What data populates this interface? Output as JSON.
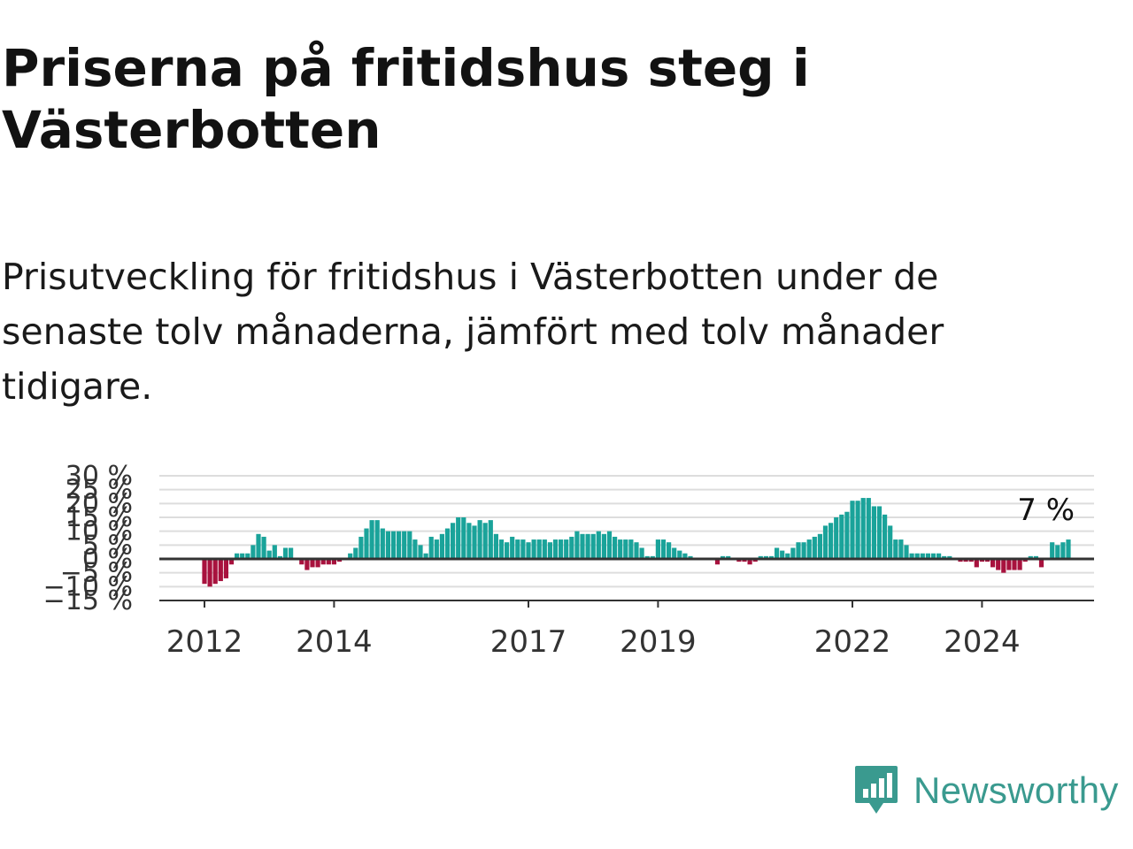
{
  "title": "Priserna på fritidshus steg i Västerbotten",
  "subtitle": "Prisutveckling för fritidshus i Västerbotten under de senaste tolv månaderna, jämfört med tolv månader tidigare.",
  "logo": {
    "text": "Newsworthy",
    "icon": "bar-chart-speech-bubble-icon"
  },
  "colors": {
    "positive": "#1aa39a",
    "negative": "#a8123e",
    "grid": "#dddddd",
    "axis": "#333333",
    "logo": "#3a9a8f"
  },
  "chart_data": {
    "type": "bar",
    "x_start": "2012-01",
    "x_end": "2025-01",
    "ylim": [
      -15,
      30
    ],
    "yticks": [
      30,
      25,
      20,
      15,
      10,
      5,
      0,
      -5,
      -10,
      -15
    ],
    "ytick_labels": [
      "30 %",
      "25 %",
      "20 %",
      "15 %",
      "10 %",
      "5 %",
      "0 %",
      "−5 %",
      "−10 %",
      "−15 %"
    ],
    "xtick_labels": [
      "2012",
      "2014",
      "2017",
      "2019",
      "2022",
      "2024"
    ],
    "xtick_years": [
      2012,
      2014,
      2017,
      2019,
      2022,
      2024
    ],
    "grid": true,
    "last_label": "7 %",
    "values": [
      -9,
      -10,
      -9,
      -8,
      -7,
      -2,
      2,
      2,
      2,
      5,
      9,
      8,
      3,
      5,
      1,
      4,
      4,
      0,
      -2,
      -4,
      -3,
      -3,
      -2,
      -2,
      -2,
      -1,
      0,
      2,
      4,
      8,
      11,
      14,
      14,
      11,
      10,
      10,
      10,
      10,
      10,
      7,
      5,
      2,
      8,
      7,
      9,
      11,
      13,
      15,
      15,
      13,
      12,
      14,
      13,
      14,
      9,
      7,
      6,
      8,
      7,
      7,
      6,
      7,
      7,
      7,
      6,
      7,
      7,
      7,
      8,
      10,
      9,
      9,
      9,
      10,
      9,
      10,
      8,
      7,
      7,
      7,
      6,
      4,
      1,
      1,
      7,
      7,
      6,
      4,
      3,
      2,
      1,
      0,
      0,
      0,
      0,
      -2,
      1,
      1,
      0,
      -1,
      -1,
      -2,
      -1,
      1,
      1,
      1,
      4,
      3,
      2,
      4,
      6,
      6,
      7,
      8,
      9,
      12,
      13,
      15,
      16,
      17,
      21,
      21,
      22,
      22,
      19,
      19,
      16,
      12,
      7,
      7,
      5,
      2,
      2,
      2,
      2,
      2,
      2,
      1,
      1,
      0,
      -1,
      -1,
      -1,
      -3,
      -1,
      -1,
      -3,
      -4,
      -5,
      -4,
      -4,
      -4,
      -1,
      1,
      1,
      -3,
      0,
      6,
      5,
      6,
      7
    ]
  }
}
